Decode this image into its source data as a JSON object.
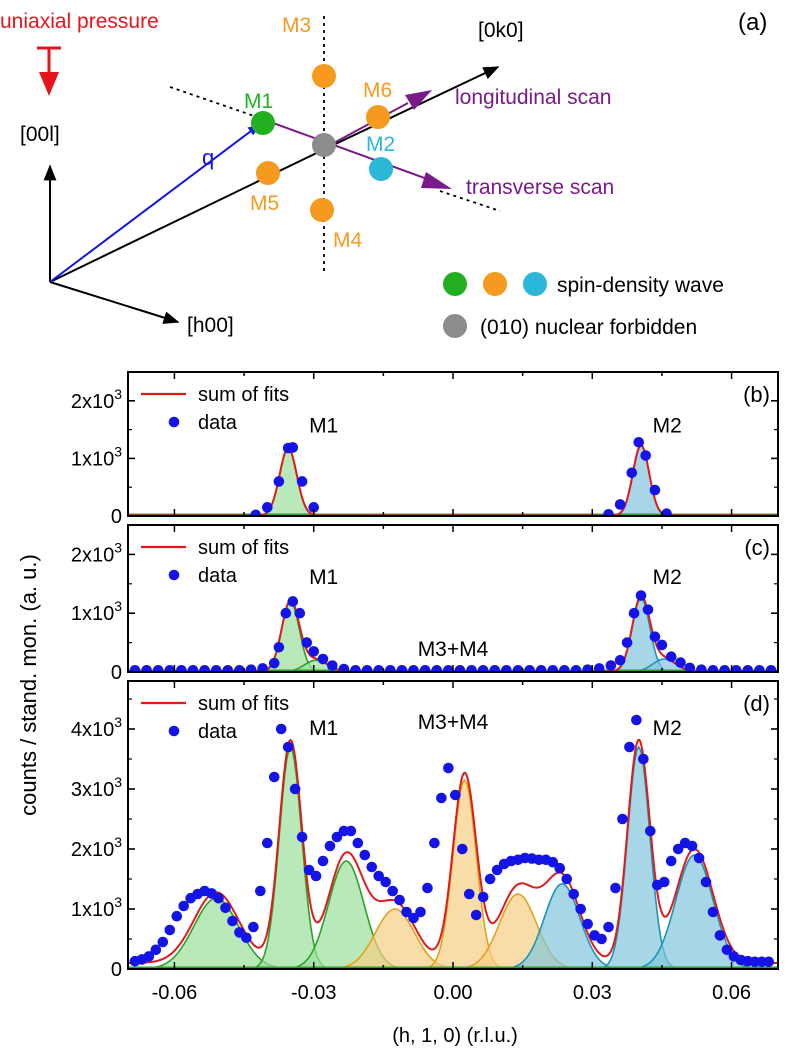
{
  "colors": {
    "red": "#e8141c",
    "blue": "#1414e6",
    "purple": "#7a1a8a",
    "green": "#22b022",
    "orange": "#f59a1e",
    "cyan": "#2bb8d8",
    "gray": "#8c8c8c",
    "fit": "#e01b1b",
    "data": "#1414e6",
    "green_fill": "#9be09b",
    "green_line": "#2ca02c",
    "orange_fill": "#f7cf85",
    "orange_line": "#e3a21a",
    "cyan_fill": "#82c6db",
    "cyan_line": "#1c94b4",
    "baseline": "#2a9d2a"
  },
  "diagram": {
    "panel_label": "(a)",
    "pressure_label": "uniaxial pressure",
    "axis_00l": "[00l]",
    "axis_h00": "[h00]",
    "axis_0k0": "[0k0]",
    "q_label": "q",
    "longitudinal_label": "longitudinal scan",
    "transverse_label": "transverse scan",
    "peaks": [
      {
        "name": "M1",
        "kind": "green"
      },
      {
        "name": "M2",
        "kind": "cyan"
      },
      {
        "name": "M3",
        "kind": "orange"
      },
      {
        "name": "M4",
        "kind": "orange"
      },
      {
        "name": "M5",
        "kind": "orange"
      },
      {
        "name": "M6",
        "kind": "orange"
      }
    ],
    "legend_sdw": "spin-density wave",
    "legend_nuclear": "(010) nuclear forbidden"
  },
  "chart_data": [
    {
      "type": "scatter",
      "id": "b",
      "panel_label": "(b)",
      "ylabel": "counts / stand. mon. (a. u.)",
      "xlabel": "(h, 1, 0) (r.l.u.)",
      "xlim": [
        -0.07,
        0.07
      ],
      "ylim": [
        0,
        2500
      ],
      "yticks": [
        {
          "value": 0,
          "label": "0"
        },
        {
          "value": 1000,
          "label": "1x10^3"
        },
        {
          "value": 2000,
          "label": "2x10^3"
        }
      ],
      "legend": [
        "sum of fits",
        "data"
      ],
      "annotations": [
        {
          "text": "M1",
          "x": -0.031,
          "y": 1450
        },
        {
          "text": "M2",
          "x": 0.043,
          "y": 1450
        }
      ],
      "components": [
        {
          "color": "green",
          "center": -0.0355,
          "amplitude": 1170,
          "sigma": 0.00185,
          "half_width": 0.0055
        },
        {
          "color": "cyan",
          "center": 0.0405,
          "amplitude": 1220,
          "sigma": 0.00175,
          "half_width": 0.0055
        }
      ],
      "background": 8,
      "series": [
        {
          "name": "data",
          "x": [
            -0.0425,
            -0.04,
            -0.0375,
            -0.0355,
            -0.0345,
            -0.0325,
            -0.03,
            0.0335,
            0.036,
            0.0385,
            0.04,
            0.0415,
            0.0435,
            0.046
          ],
          "y": [
            20,
            150,
            600,
            1180,
            1190,
            600,
            150,
            30,
            200,
            750,
            1280,
            1050,
            450,
            40
          ]
        }
      ]
    },
    {
      "type": "scatter",
      "id": "c",
      "panel_label": "(c)",
      "xlim": [
        -0.07,
        0.07
      ],
      "ylim": [
        0,
        2500
      ],
      "yticks": [
        {
          "value": 0,
          "label": "0"
        },
        {
          "value": 1000,
          "label": "1x10^3"
        },
        {
          "value": 2000,
          "label": "2x10^3"
        }
      ],
      "legend": [
        "sum of fits",
        "data"
      ],
      "annotations": [
        {
          "text": "M1",
          "x": -0.031,
          "y": 1500
        },
        {
          "text": "M3+M4",
          "x": 0.0,
          "y": 270
        },
        {
          "text": "M2",
          "x": 0.043,
          "y": 1500
        }
      ],
      "components": [
        {
          "color": "green",
          "center": -0.035,
          "amplitude": 1200,
          "sigma": 0.0019,
          "half_width": 0.0095
        },
        {
          "color": "green",
          "center": -0.0295,
          "amplitude": 200,
          "sigma": 0.0025,
          "half_width": 0.0095
        },
        {
          "color": "cyan",
          "center": 0.0405,
          "amplitude": 1260,
          "sigma": 0.0019,
          "half_width": 0.0095
        },
        {
          "color": "cyan",
          "center": 0.0455,
          "amplitude": 220,
          "sigma": 0.0025,
          "half_width": 0.0095
        }
      ],
      "background": 8,
      "series": [
        {
          "name": "data",
          "x": [
            -0.0685,
            -0.066,
            -0.0635,
            -0.061,
            -0.0585,
            -0.056,
            -0.0535,
            -0.051,
            -0.0485,
            -0.046,
            -0.0435,
            -0.041,
            -0.0385,
            -0.0375,
            -0.036,
            -0.0345,
            -0.033,
            -0.0315,
            -0.03,
            -0.028,
            -0.026,
            -0.0235,
            -0.021,
            -0.0185,
            -0.016,
            -0.0135,
            -0.011,
            -0.0085,
            -0.006,
            -0.0035,
            -0.001,
            0.0015,
            0.004,
            0.0065,
            0.009,
            0.0115,
            0.014,
            0.0165,
            0.019,
            0.0215,
            0.024,
            0.0265,
            0.029,
            0.0315,
            0.034,
            0.036,
            0.0375,
            0.039,
            0.0405,
            0.042,
            0.0435,
            0.045,
            0.047,
            0.049,
            0.051,
            0.0535,
            0.056,
            0.0585,
            0.061,
            0.0635,
            0.066,
            0.0685
          ],
          "y": [
            30,
            30,
            30,
            30,
            30,
            30,
            30,
            30,
            30,
            30,
            40,
            60,
            150,
            420,
            1000,
            1200,
            1000,
            500,
            350,
            220,
            110,
            50,
            30,
            30,
            30,
            30,
            30,
            30,
            30,
            30,
            30,
            30,
            30,
            30,
            30,
            30,
            30,
            30,
            30,
            30,
            30,
            30,
            40,
            60,
            110,
            200,
            500,
            1000,
            1300,
            1060,
            600,
            460,
            260,
            160,
            70,
            40,
            30,
            30,
            30,
            30,
            30,
            30
          ]
        }
      ]
    },
    {
      "type": "scatter",
      "id": "d",
      "panel_label": "(d)",
      "xlim": [
        -0.07,
        0.07
      ],
      "ylim": [
        0,
        4800
      ],
      "xticks": [
        {
          "value": -0.06,
          "label": "-0.06"
        },
        {
          "value": -0.03,
          "label": "-0.03"
        },
        {
          "value": 0.0,
          "label": "0.00"
        },
        {
          "value": 0.03,
          "label": "0.03"
        },
        {
          "value": 0.06,
          "label": "0.06"
        }
      ],
      "yticks": [
        {
          "value": 0,
          "label": "0"
        },
        {
          "value": 1000,
          "label": "1x10^3"
        },
        {
          "value": 2000,
          "label": "2x10^3"
        },
        {
          "value": 3000,
          "label": "3x10^3"
        },
        {
          "value": 4000,
          "label": "4x10^3"
        }
      ],
      "legend": [
        "sum of fits",
        "data"
      ],
      "annotations": [
        {
          "text": "M1",
          "x": -0.031,
          "y": 3900
        },
        {
          "text": "M3+M4",
          "x": 0.0,
          "y": 4000
        },
        {
          "text": "M2",
          "x": 0.043,
          "y": 3900
        }
      ],
      "components": [
        {
          "color": "green",
          "center": -0.051,
          "amplitude": 1180,
          "sigma": 0.0048,
          "half_width": 0.026
        },
        {
          "color": "green",
          "center": -0.035,
          "amplitude": 3700,
          "sigma": 0.0024,
          "half_width": 0.026
        },
        {
          "color": "green",
          "center": -0.023,
          "amplitude": 1800,
          "sigma": 0.0038,
          "half_width": 0.026
        },
        {
          "color": "orange",
          "center": -0.0125,
          "amplitude": 1000,
          "sigma": 0.0042,
          "half_width": 0.026
        },
        {
          "color": "orange",
          "center": 0.0025,
          "amplitude": 3150,
          "sigma": 0.0025,
          "half_width": 0.026
        },
        {
          "color": "orange",
          "center": 0.014,
          "amplitude": 1250,
          "sigma": 0.004,
          "half_width": 0.026
        },
        {
          "color": "cyan",
          "center": 0.0235,
          "amplitude": 1420,
          "sigma": 0.0038,
          "half_width": 0.026
        },
        {
          "color": "cyan",
          "center": 0.04,
          "amplitude": 3700,
          "sigma": 0.0024,
          "half_width": 0.026
        },
        {
          "color": "cyan",
          "center": 0.052,
          "amplitude": 1900,
          "sigma": 0.004,
          "half_width": 0.026
        }
      ],
      "background": 100,
      "series": [
        {
          "name": "data",
          "x": [
            -0.0685,
            -0.067,
            -0.0655,
            -0.064,
            -0.0625,
            -0.061,
            -0.0595,
            -0.058,
            -0.0565,
            -0.055,
            -0.0535,
            -0.052,
            -0.0505,
            -0.049,
            -0.0475,
            -0.046,
            -0.0445,
            -0.043,
            -0.0415,
            -0.04,
            -0.0385,
            -0.037,
            -0.0355,
            -0.034,
            -0.0325,
            -0.031,
            -0.0295,
            -0.028,
            -0.0265,
            -0.025,
            -0.0235,
            -0.022,
            -0.0205,
            -0.019,
            -0.0175,
            -0.016,
            -0.0145,
            -0.013,
            -0.0115,
            -0.01,
            -0.0085,
            -0.007,
            -0.0055,
            -0.004,
            -0.0025,
            -0.001,
            0.0005,
            0.002,
            0.0035,
            0.005,
            0.0065,
            0.008,
            0.0095,
            0.011,
            0.0125,
            0.014,
            0.0155,
            0.017,
            0.0185,
            0.02,
            0.0215,
            0.023,
            0.0245,
            0.026,
            0.0275,
            0.029,
            0.0305,
            0.032,
            0.0335,
            0.035,
            0.0365,
            0.038,
            0.0395,
            0.041,
            0.0425,
            0.044,
            0.0455,
            0.047,
            0.0485,
            0.05,
            0.0515,
            0.053,
            0.0545,
            0.056,
            0.0575,
            0.059,
            0.0605,
            0.062,
            0.0635,
            0.065,
            0.0665,
            0.068
          ],
          "y": [
            130,
            160,
            210,
            320,
            450,
            650,
            880,
            1050,
            1180,
            1250,
            1300,
            1260,
            1180,
            1020,
            800,
            610,
            520,
            700,
            1300,
            2100,
            3200,
            4000,
            3700,
            3000,
            2200,
            1650,
            1550,
            1800,
            2050,
            2200,
            2300,
            2300,
            2100,
            1900,
            1700,
            1550,
            1450,
            1300,
            1150,
            950,
            850,
            950,
            1350,
            2100,
            2850,
            3350,
            2900,
            2000,
            1250,
            900,
            1200,
            1500,
            1650,
            1750,
            1800,
            1820,
            1850,
            1840,
            1820,
            1820,
            1780,
            1680,
            1500,
            1250,
            1000,
            750,
            560,
            500,
            700,
            1350,
            2500,
            3700,
            4150,
            3500,
            2300,
            1400,
            1450,
            1800,
            2000,
            2100,
            2050,
            1850,
            1450,
            950,
            560,
            320,
            210,
            150,
            130,
            120,
            120,
            120
          ]
        }
      ]
    }
  ]
}
